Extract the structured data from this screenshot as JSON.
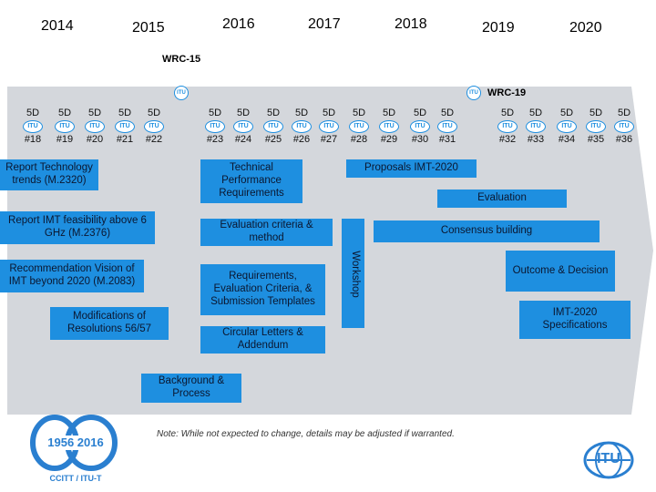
{
  "years": [
    "2014",
    "2015",
    "2016",
    "2017",
    "2018",
    "2019",
    "2020"
  ],
  "wrc15": "WRC-15",
  "wrc19": "WRC-19",
  "itu_logo_text": "ITU",
  "meetings": [
    {
      "sd": "5D",
      "num": "#18"
    },
    {
      "sd": "5D",
      "num": "#19"
    },
    {
      "sd": "5D",
      "num": "#20"
    },
    {
      "sd": "5D",
      "num": "#21"
    },
    {
      "sd": "5D",
      "num": "#22"
    },
    {
      "sd": "5D",
      "num": "#23"
    },
    {
      "sd": "5D",
      "num": "#24"
    },
    {
      "sd": "5D",
      "num": "#25"
    },
    {
      "sd": "5D",
      "num": "#26"
    },
    {
      "sd": "5D",
      "num": "#27"
    },
    {
      "sd": "5D",
      "num": "#28"
    },
    {
      "sd": "5D",
      "num": "#29"
    },
    {
      "sd": "5D",
      "num": "#30"
    },
    {
      "sd": "5D",
      "num": "#31"
    },
    {
      "sd": "5D",
      "num": "#32"
    },
    {
      "sd": "5D",
      "num": "#33"
    },
    {
      "sd": "5D",
      "num": "#34"
    },
    {
      "sd": "5D",
      "num": "#35"
    },
    {
      "sd": "5D",
      "num": "#36"
    }
  ],
  "boxes": {
    "report_tech_trends": "Report Technology trends (M.2320)",
    "report_imt_above6": "Report IMT feasibility above 6 GHz (M.2376)",
    "rec_vision": "Recommendation Vision of IMT beyond 2020 (M.2083)",
    "mod_resolutions": "Modifications of Resolutions 56/57",
    "tech_perf_req": "Technical Performance Requirements",
    "eval_criteria": "Evaluation criteria & method",
    "req_eval_sub": "Requirements, Evaluation Criteria, & Submission Templates",
    "circular_letters": "Circular Letters & Addendum",
    "background_process": "Background & Process",
    "workshop": "Workshop",
    "proposals": "Proposals IMT-2020",
    "evaluation": "Evaluation",
    "consensus": "Consensus building",
    "outcome": "Outcome & Decision",
    "specifications": "IMT-2020 Specifications"
  },
  "note": "Note: While not expected to change, details may be adjusted if warranted.",
  "logo_60": {
    "years": "1956 2016",
    "caption": "CCITT / ITU-T"
  },
  "colors": {
    "box_blue": "#1e8fe0",
    "band_gray": "#d4d7dc",
    "logo_blue": "#2a7fd0"
  }
}
